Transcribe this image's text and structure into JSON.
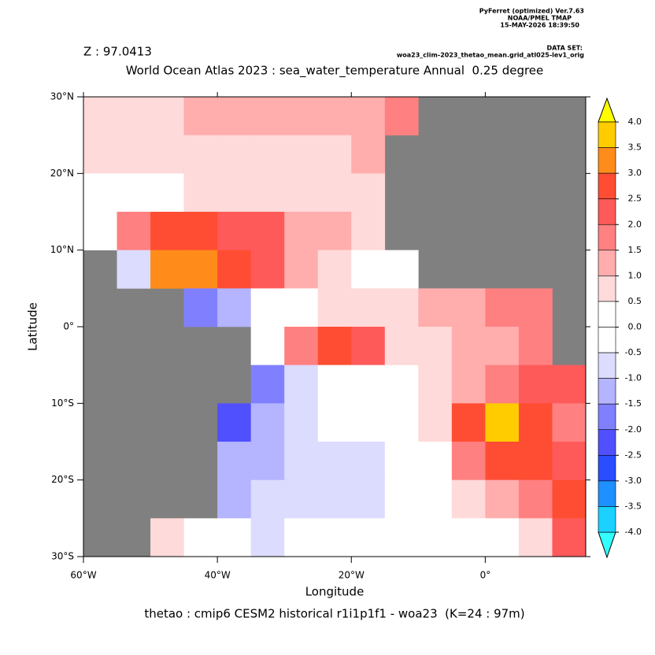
{
  "chart_data": {
    "type": "heatmap",
    "header": [
      "PyFerret (optimized) Ver.7.63",
      "NOAA/PMEL TMAP",
      "15-MAY-2026 18:39:50"
    ],
    "dataset_label": "DATA SET:",
    "dataset": "woa23_clim-2023_thetao_mean.grid_atl025-lev1_orig",
    "depth_label": "Z : 97.0413",
    "title": "World Ocean Atlas 2023 : sea_water_temperature Annual  0.25 degree",
    "xlabel": "Longitude",
    "ylabel": "Latitude",
    "caption": "thetao : cmip6 CESM2 historical r1i1p1f1 - woa23  (K=24 : 97m)",
    "xlim": [
      -60,
      15
    ],
    "ylim": [
      -30,
      30
    ],
    "xticks": [
      {
        "value": -60,
        "label": "60°W"
      },
      {
        "value": -40,
        "label": "40°W"
      },
      {
        "value": -20,
        "label": "20°W"
      },
      {
        "value": 0,
        "label": "0°"
      }
    ],
    "yticks": [
      {
        "value": 30,
        "label": "30°N"
      },
      {
        "value": 20,
        "label": "20°N"
      },
      {
        "value": 10,
        "label": "10°N"
      },
      {
        "value": 0,
        "label": "0°"
      },
      {
        "value": -10,
        "label": "10°S"
      },
      {
        "value": -20,
        "label": "20°S"
      },
      {
        "value": -30,
        "label": "30°S"
      }
    ],
    "lon_edges": [
      -60,
      -55,
      -50,
      -45,
      -40,
      -35,
      -30,
      -25,
      -20,
      -15,
      -10,
      -5,
      0,
      5,
      10,
      15
    ],
    "lat_edges": [
      30,
      25,
      20,
      15,
      10,
      5,
      0,
      -5,
      -10,
      -15,
      -20,
      -25,
      -30
    ],
    "land_color": "#808080",
    "values": [
      [
        0.7,
        0.7,
        0.7,
        1.2,
        1.2,
        1.2,
        1.2,
        1.2,
        1.2,
        1.5,
        null,
        null,
        null,
        null,
        null
      ],
      [
        0.8,
        0.8,
        0.8,
        0.8,
        0.8,
        0.8,
        0.8,
        0.8,
        1.0,
        null,
        null,
        null,
        null,
        null,
        null
      ],
      [
        0.3,
        0.3,
        0.3,
        0.7,
        0.7,
        0.7,
        0.7,
        0.7,
        0.5,
        null,
        null,
        null,
        null,
        null,
        null
      ],
      [
        0.3,
        1.5,
        2.5,
        2.5,
        2.0,
        2.0,
        1.0,
        1.0,
        0.7,
        null,
        null,
        null,
        null,
        null,
        null
      ],
      [
        null,
        -1.0,
        3.0,
        3.0,
        2.5,
        2.0,
        1.0,
        0.7,
        0.3,
        0.3,
        null,
        null,
        null,
        null,
        null
      ],
      [
        null,
        null,
        null,
        -2.0,
        -1.5,
        -0.5,
        0.3,
        0.5,
        0.5,
        0.7,
        1.0,
        1.0,
        1.5,
        1.5,
        null
      ],
      [
        null,
        null,
        null,
        null,
        null,
        -0.5,
        1.5,
        2.5,
        2.0,
        0.7,
        0.7,
        1.0,
        1.0,
        1.5,
        null
      ],
      [
        null,
        null,
        null,
        null,
        null,
        -2.0,
        -0.7,
        -0.5,
        0.3,
        0.3,
        0.5,
        1.0,
        1.5,
        2.0,
        2.0
      ],
      [
        null,
        null,
        null,
        null,
        -2.5,
        -1.5,
        -0.7,
        -0.5,
        -0.3,
        0.3,
        0.7,
        2.5,
        3.5,
        2.5,
        1.5
      ],
      [
        null,
        null,
        null,
        null,
        -1.5,
        -1.5,
        -1.0,
        -1.0,
        -0.7,
        -0.3,
        0.3,
        1.5,
        2.5,
        2.5,
        2.0
      ],
      [
        null,
        null,
        null,
        null,
        -1.5,
        -1.0,
        -1.0,
        -1.0,
        -0.7,
        -0.3,
        0.3,
        0.5,
        1.0,
        1.5,
        2.5
      ],
      [
        null,
        null,
        0.5,
        -0.5,
        -0.5,
        -0.7,
        -0.5,
        -0.5,
        -0.3,
        -0.3,
        0.3,
        0.3,
        0.3,
        0.5,
        2.0
      ]
    ],
    "colorbar": {
      "levels": [
        {
          "value": 4,
          "label": "4.0"
        },
        3.5,
        {
          "value": 3,
          "label": "3.0"
        },
        2.5,
        {
          "value": 2,
          "label": "2.0"
        },
        1.5,
        {
          "value": 1,
          "label": "1.0"
        },
        0.5,
        {
          "value": 0,
          "label": "0.0"
        },
        -0.5,
        {
          "value": -1,
          "label": "-1.0"
        },
        -1.5,
        {
          "value": -2,
          "label": "-2.0"
        },
        -2.5,
        {
          "value": -3,
          "label": "-3.0"
        },
        -3.5,
        {
          "value": -4,
          "label": "-4.0"
        }
      ],
      "colors": [
        "#ffcc00",
        "#ff8c1a",
        "#ff4d33",
        "#ff5a5a",
        "#ff8080",
        "#ffadad",
        "#ffdada",
        "#ffffff",
        "#ffffff",
        "#dcdcff",
        "#b4b4ff",
        "#8080ff",
        "#5050ff",
        "#2a4dff",
        "#1e90ff",
        "#1ad1ff"
      ],
      "over_color": "#ffff00",
      "under_color": "#33ffff"
    }
  }
}
